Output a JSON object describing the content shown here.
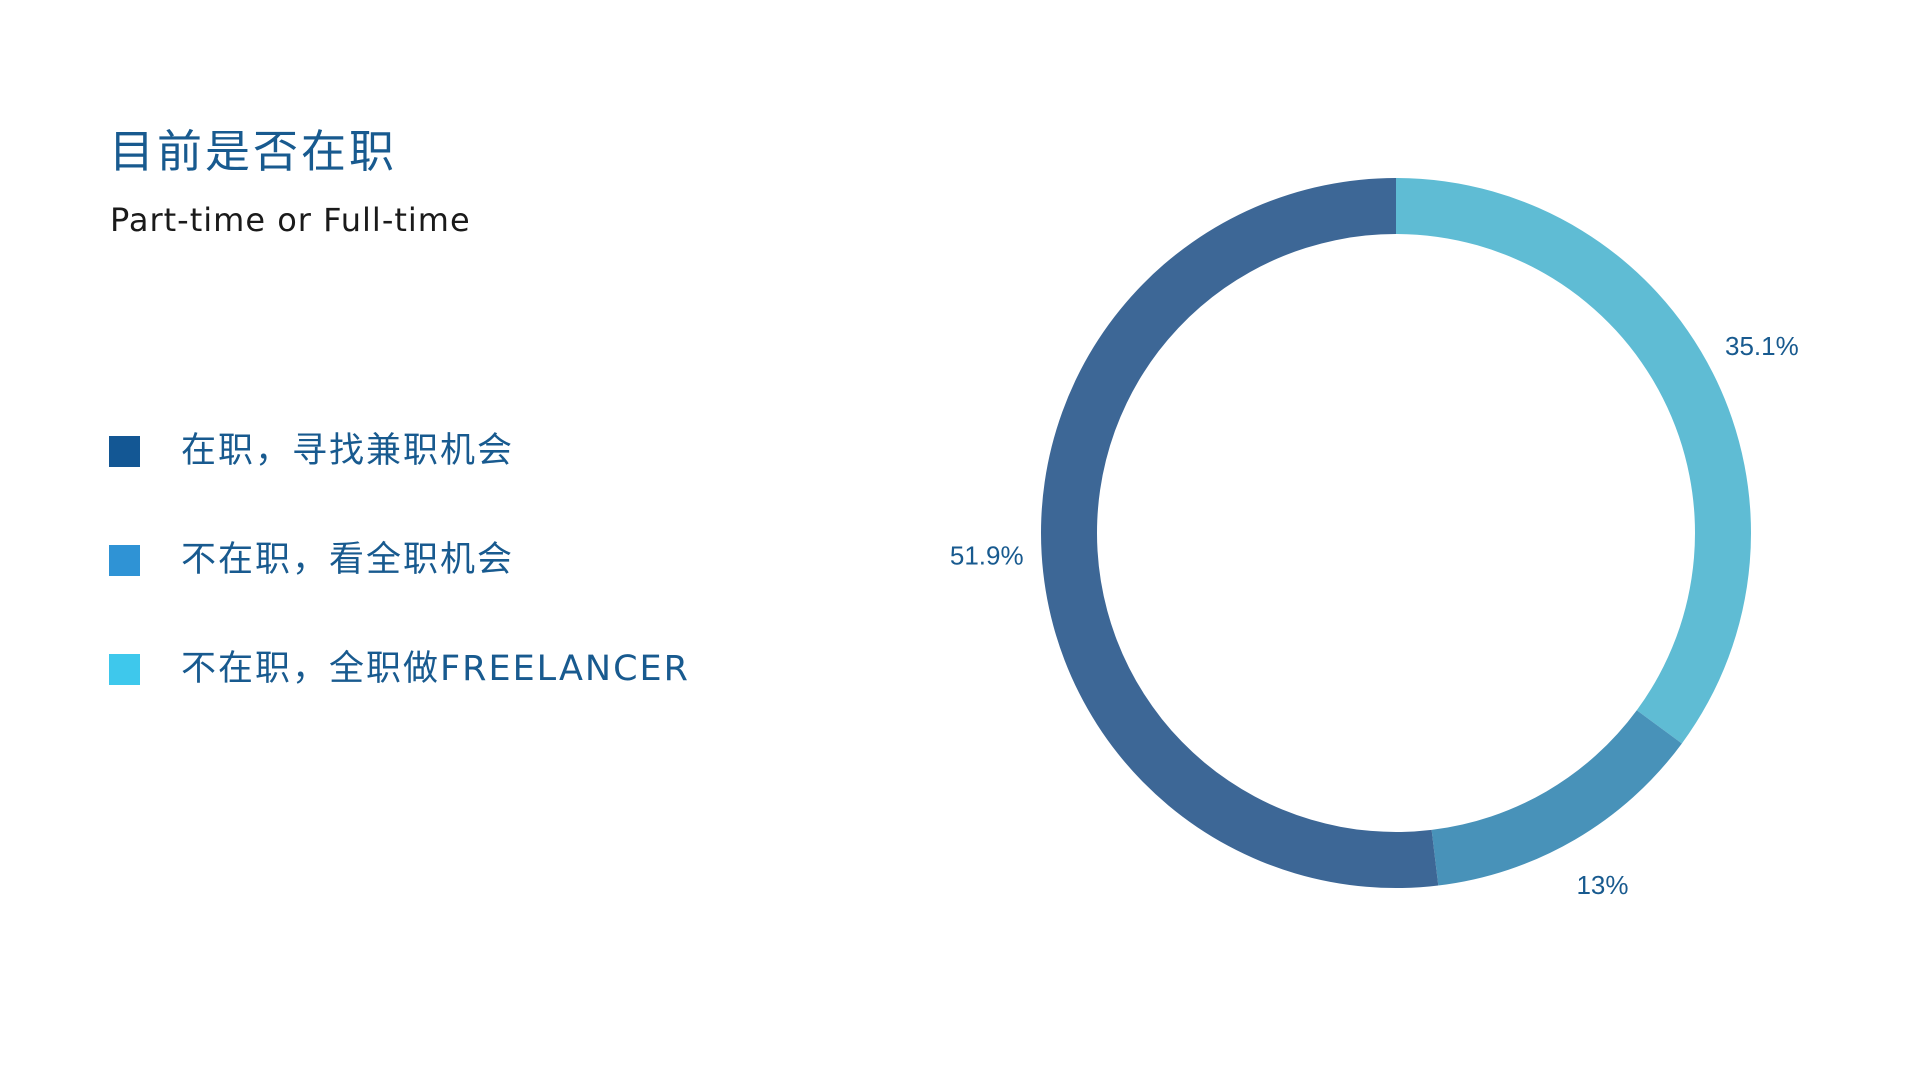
{
  "chart_data": {
    "type": "pie",
    "title": "目前是否在职",
    "subtitle": "Part-time or Full-time",
    "legend_position": "left",
    "categories": [
      "在职，寻找兼职机会",
      "不在职，看全职机会",
      "不在职，全职做FREELANCER"
    ],
    "values": [
      51.9,
      13,
      35.1
    ],
    "value_labels": [
      "51.9%",
      "13%",
      "35.1%"
    ],
    "legend_colors": [
      "#135794",
      "#2f93d5",
      "#3ec8ec"
    ],
    "slice_colors": [
      "#3d6796",
      "#4892b9",
      "#5fbcd4"
    ]
  }
}
